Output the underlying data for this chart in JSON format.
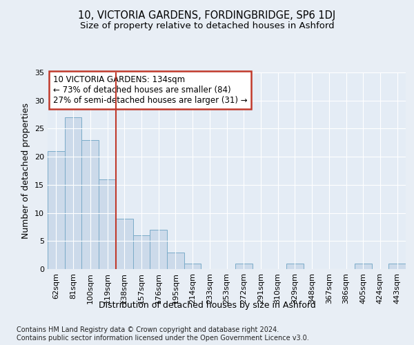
{
  "title": "10, VICTORIA GARDENS, FORDINGBRIDGE, SP6 1DJ",
  "subtitle": "Size of property relative to detached houses in Ashford",
  "xlabel": "Distribution of detached houses by size in Ashford",
  "ylabel": "Number of detached properties",
  "categories": [
    "62sqm",
    "81sqm",
    "100sqm",
    "119sqm",
    "138sqm",
    "157sqm",
    "176sqm",
    "195sqm",
    "214sqm",
    "233sqm",
    "253sqm",
    "272sqm",
    "291sqm",
    "310sqm",
    "329sqm",
    "348sqm",
    "367sqm",
    "386sqm",
    "405sqm",
    "424sqm",
    "443sqm"
  ],
  "values": [
    21,
    27,
    23,
    16,
    9,
    6,
    7,
    3,
    1,
    0,
    0,
    1,
    0,
    0,
    1,
    0,
    0,
    0,
    1,
    0,
    1
  ],
  "bar_color": "#ccdaea",
  "bar_edge_color": "#7aabc8",
  "vline_index": 4,
  "vline_label": "10 VICTORIA GARDENS: 134sqm",
  "pct_smaller": "73% of detached houses are smaller (84)",
  "pct_larger": "27% of semi-detached houses are larger (31)",
  "vline_color": "#c0392b",
  "annotation_box_edgecolor": "#c0392b",
  "ylim": [
    0,
    35
  ],
  "yticks": [
    0,
    5,
    10,
    15,
    20,
    25,
    30,
    35
  ],
  "title_fontsize": 10.5,
  "subtitle_fontsize": 9.5,
  "axis_label_fontsize": 9,
  "tick_fontsize": 8,
  "annotation_fontsize": 8.5,
  "footer": "Contains HM Land Registry data © Crown copyright and database right 2024.\nContains public sector information licensed under the Open Government Licence v3.0.",
  "footer_fontsize": 7,
  "bg_color": "#e8eef5",
  "plot_bg_color": "#e4ecf5"
}
